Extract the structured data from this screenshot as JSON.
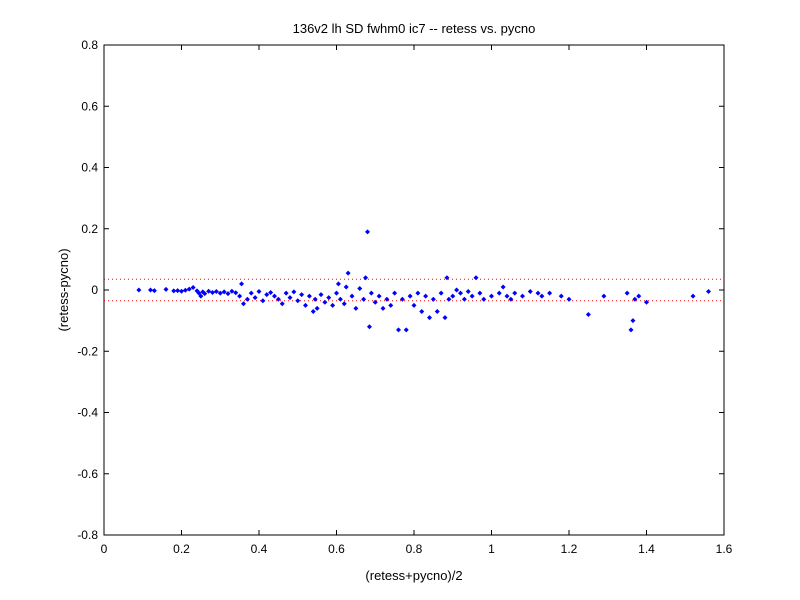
{
  "chart_data": {
    "type": "scatter",
    "title": "136v2 lh SD fwhm0 ic7 -- retess vs. pycno",
    "xlabel": "(retess+pycno)/2",
    "ylabel": "(retess-pycno)",
    "xlim": [
      0,
      1.6
    ],
    "ylim": [
      -0.8,
      0.8
    ],
    "xticks": [
      "0",
      "0.2",
      "0.4",
      "0.6",
      "0.8",
      "1",
      "1.2",
      "1.4",
      "1.6"
    ],
    "yticks": [
      "-0.8",
      "-0.6",
      "-0.4",
      "-0.2",
      "0",
      "0.2",
      "0.4",
      "0.6",
      "0.8"
    ],
    "grid": false,
    "marker_color": "#0000ff",
    "reference_line_color": "#ff0000",
    "reference_lines_y": [
      0.035,
      -0.035
    ],
    "points": [
      [
        0.09,
        0.0
      ],
      [
        0.12,
        0.0
      ],
      [
        0.13,
        -0.002
      ],
      [
        0.16,
        0.002
      ],
      [
        0.18,
        -0.003
      ],
      [
        0.19,
        -0.002
      ],
      [
        0.2,
        -0.004
      ],
      [
        0.21,
        -0.001
      ],
      [
        0.22,
        0.003
      ],
      [
        0.23,
        0.008
      ],
      [
        0.24,
        -0.003
      ],
      [
        0.245,
        -0.01
      ],
      [
        0.25,
        -0.02
      ],
      [
        0.255,
        -0.006
      ],
      [
        0.26,
        -0.012
      ],
      [
        0.27,
        -0.004
      ],
      [
        0.28,
        -0.008
      ],
      [
        0.29,
        -0.005
      ],
      [
        0.3,
        -0.01
      ],
      [
        0.31,
        -0.006
      ],
      [
        0.32,
        -0.012
      ],
      [
        0.33,
        -0.004
      ],
      [
        0.34,
        -0.009
      ],
      [
        0.35,
        -0.02
      ],
      [
        0.355,
        0.02
      ],
      [
        0.36,
        -0.045
      ],
      [
        0.37,
        -0.03
      ],
      [
        0.38,
        -0.01
      ],
      [
        0.39,
        -0.025
      ],
      [
        0.4,
        -0.005
      ],
      [
        0.41,
        -0.035
      ],
      [
        0.42,
        -0.015
      ],
      [
        0.43,
        -0.008
      ],
      [
        0.44,
        -0.02
      ],
      [
        0.45,
        -0.03
      ],
      [
        0.46,
        -0.045
      ],
      [
        0.47,
        -0.01
      ],
      [
        0.48,
        -0.025
      ],
      [
        0.49,
        -0.006
      ],
      [
        0.5,
        -0.035
      ],
      [
        0.51,
        -0.015
      ],
      [
        0.52,
        -0.05
      ],
      [
        0.53,
        -0.02
      ],
      [
        0.54,
        -0.07
      ],
      [
        0.545,
        -0.03
      ],
      [
        0.55,
        -0.06
      ],
      [
        0.56,
        -0.015
      ],
      [
        0.57,
        -0.04
      ],
      [
        0.58,
        -0.025
      ],
      [
        0.59,
        -0.05
      ],
      [
        0.6,
        -0.01
      ],
      [
        0.605,
        0.02
      ],
      [
        0.61,
        -0.03
      ],
      [
        0.62,
        -0.045
      ],
      [
        0.625,
        0.01
      ],
      [
        0.63,
        0.055
      ],
      [
        0.64,
        -0.02
      ],
      [
        0.65,
        -0.06
      ],
      [
        0.66,
        0.005
      ],
      [
        0.67,
        -0.03
      ],
      [
        0.675,
        0.04
      ],
      [
        0.68,
        0.19
      ],
      [
        0.685,
        -0.12
      ],
      [
        0.69,
        -0.01
      ],
      [
        0.7,
        -0.04
      ],
      [
        0.71,
        -0.02
      ],
      [
        0.72,
        -0.06
      ],
      [
        0.73,
        -0.03
      ],
      [
        0.74,
        -0.05
      ],
      [
        0.75,
        -0.01
      ],
      [
        0.76,
        -0.13
      ],
      [
        0.77,
        -0.03
      ],
      [
        0.78,
        -0.13
      ],
      [
        0.79,
        -0.02
      ],
      [
        0.8,
        -0.05
      ],
      [
        0.81,
        -0.01
      ],
      [
        0.82,
        -0.07
      ],
      [
        0.83,
        -0.02
      ],
      [
        0.84,
        -0.09
      ],
      [
        0.85,
        -0.03
      ],
      [
        0.86,
        -0.07
      ],
      [
        0.87,
        -0.01
      ],
      [
        0.88,
        -0.09
      ],
      [
        0.885,
        0.04
      ],
      [
        0.89,
        -0.03
      ],
      [
        0.9,
        -0.02
      ],
      [
        0.91,
        0.0
      ],
      [
        0.92,
        -0.01
      ],
      [
        0.93,
        -0.03
      ],
      [
        0.94,
        -0.005
      ],
      [
        0.95,
        -0.02
      ],
      [
        0.96,
        0.04
      ],
      [
        0.97,
        -0.01
      ],
      [
        0.98,
        -0.03
      ],
      [
        1.0,
        -0.02
      ],
      [
        1.02,
        -0.01
      ],
      [
        1.03,
        0.01
      ],
      [
        1.04,
        -0.02
      ],
      [
        1.05,
        -0.03
      ],
      [
        1.06,
        -0.01
      ],
      [
        1.08,
        -0.02
      ],
      [
        1.1,
        -0.005
      ],
      [
        1.12,
        -0.01
      ],
      [
        1.13,
        -0.02
      ],
      [
        1.15,
        -0.01
      ],
      [
        1.18,
        -0.02
      ],
      [
        1.2,
        -0.03
      ],
      [
        1.25,
        -0.08
      ],
      [
        1.29,
        -0.02
      ],
      [
        1.35,
        -0.01
      ],
      [
        1.36,
        -0.13
      ],
      [
        1.365,
        -0.1
      ],
      [
        1.37,
        -0.03
      ],
      [
        1.38,
        -0.02
      ],
      [
        1.4,
        -0.04
      ],
      [
        1.52,
        -0.02
      ],
      [
        1.56,
        -0.005
      ]
    ]
  }
}
